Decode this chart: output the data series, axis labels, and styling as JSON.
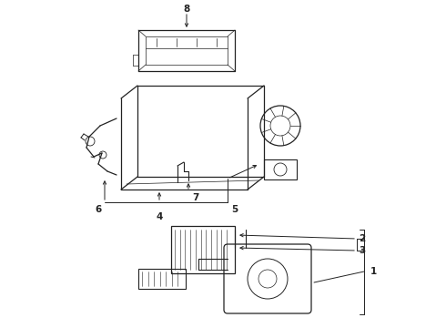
{
  "background_color": "#ffffff",
  "line_color": "#222222",
  "figsize": [
    4.9,
    3.6
  ],
  "dpi": 100,
  "label_fontsize": 7.5
}
